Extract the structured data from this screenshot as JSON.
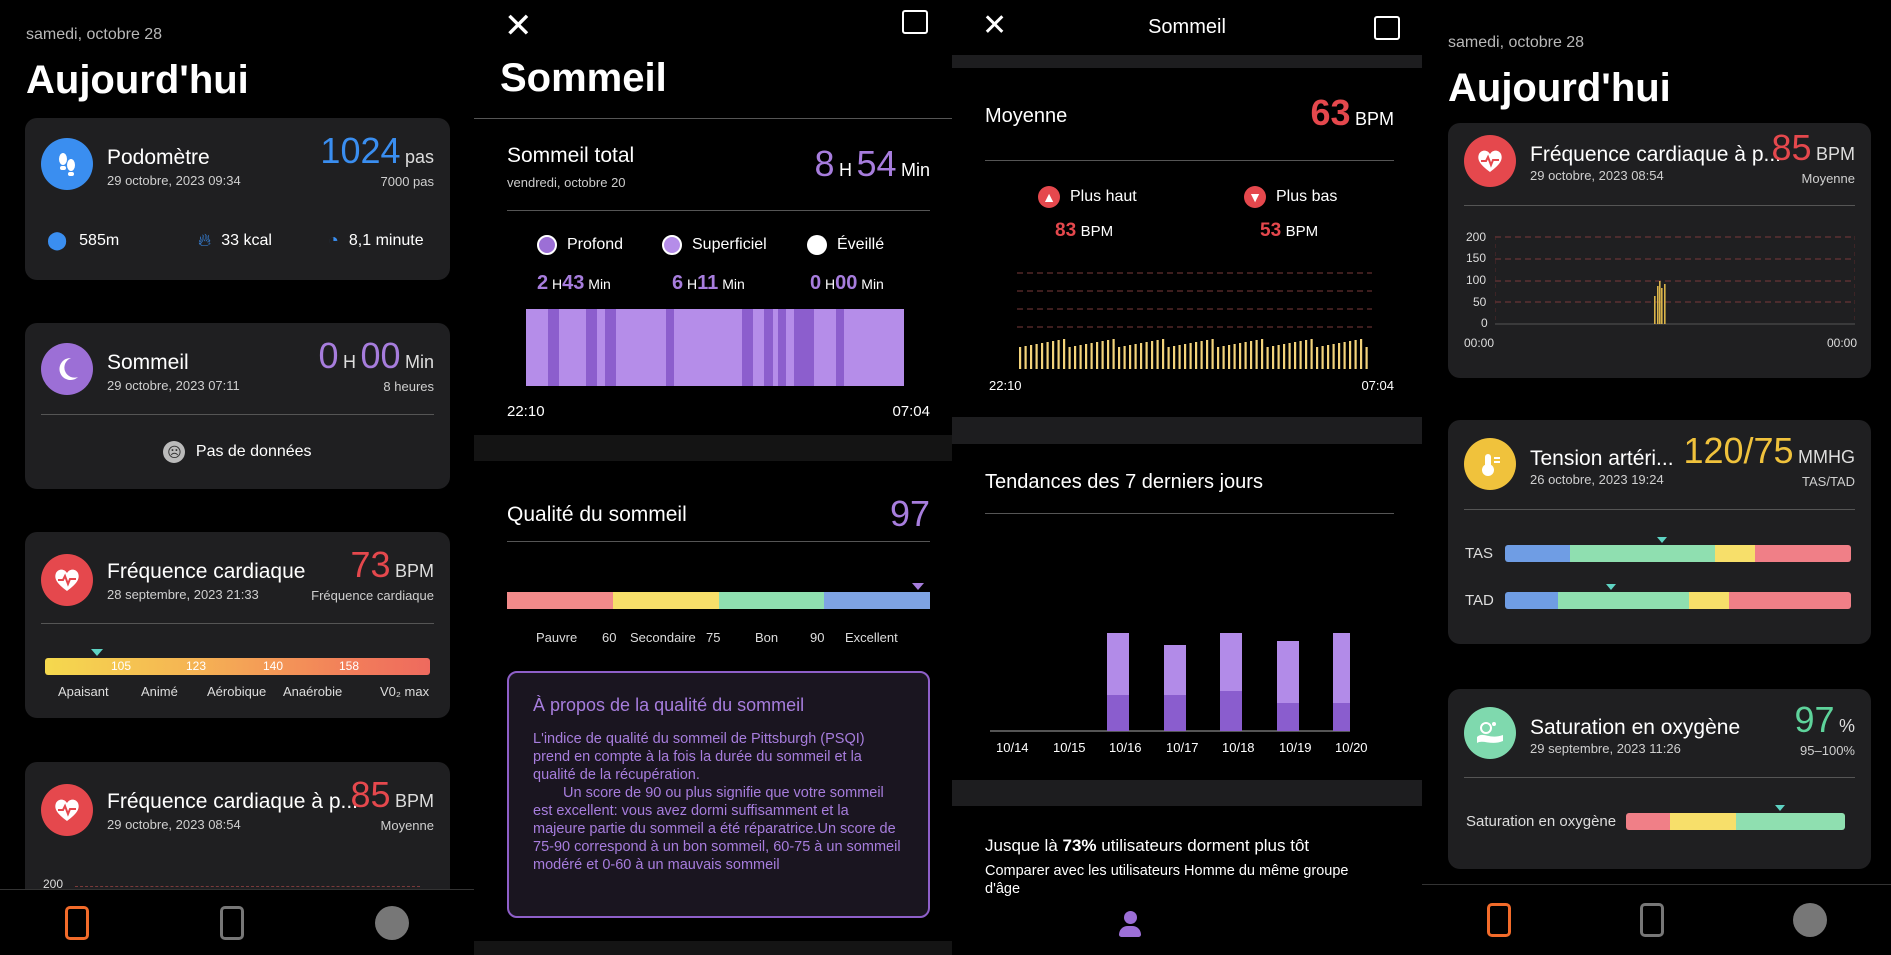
{
  "screen1": {
    "date": "samedi, octobre 28",
    "title": "Aujourd'hui",
    "pedometer": {
      "title": "Podomètre",
      "subtitle": "29 octobre, 2023 09:34",
      "value": "1024",
      "unit": "pas",
      "goal": "7000 pas",
      "distance": "585m",
      "calories": "33 kcal",
      "duration": "8,1 minute"
    },
    "sleep": {
      "title": "Sommeil",
      "subtitle": "29 octobre, 2023 07:11",
      "h": "0",
      "h_unit": "H",
      "m": "00",
      "m_unit": "Min",
      "goal": "8 heures",
      "empty": "Pas de données"
    },
    "heart": {
      "title": "Fréquence cardiaque",
      "subtitle": "28 septembre, 2023 21:33",
      "value": "73",
      "unit": "BPM",
      "label": "Fréquence cardiaque",
      "zones": [
        "105",
        "123",
        "140",
        "158"
      ],
      "zone_names": [
        "Apaisant",
        "Animé",
        "Aérobique",
        "Anaérobie",
        "V0₂ max"
      ]
    },
    "heart2": {
      "title": "Fréquence cardiaque à p...",
      "subtitle": "29 octobre, 2023 08:54",
      "value": "85",
      "unit": "BPM",
      "label": "Moyenne",
      "axis_top": "200"
    }
  },
  "screen2": {
    "title": "Sommeil",
    "total": {
      "label": "Sommeil total",
      "date": "vendredi, octobre 20",
      "h": "8",
      "h_unit": "H",
      "m": "54",
      "m_unit": "Min"
    },
    "legend": [
      {
        "name": "Profond",
        "h": "2",
        "m": "43",
        "color": "#9c6fd6"
      },
      {
        "name": "Superficiel",
        "h": "6",
        "m": "11",
        "color": "#b58de9"
      },
      {
        "name": "Éveillé",
        "h": "0",
        "m": "00",
        "color": "#ffffff"
      }
    ],
    "h_unit": "H",
    "m_unit": "Min",
    "start": "22:10",
    "end": "07:04",
    "quality": {
      "label": "Qualité du sommeil",
      "value": "97",
      "scale": [
        "Pauvre",
        "60",
        "Secondaire",
        "75",
        "Bon",
        "90",
        "Excellent"
      ]
    },
    "about": {
      "title": "À propos de la qualité du sommeil",
      "p1": "L'indice de qualité du sommeil de Pittsburgh (PSQI) prend en compte à la fois la durée du sommeil et la qualité de la récupération.",
      "p2": "Un score de 90 ou plus signifie que votre sommeil est excellent: vous avez dormi suffisamment et la majeure partie du sommeil a été réparatrice.Un score de 75-90 correspond à un bon sommeil, 60-75 à un sommeil modéré et 0-60 à un mauvais sommeil"
    }
  },
  "screen3": {
    "title": "Sommeil",
    "avg": {
      "label": "Moyenne",
      "value": "63",
      "unit": "BPM"
    },
    "high": {
      "label": "Plus haut",
      "value": "83",
      "unit": "BPM"
    },
    "low": {
      "label": "Plus bas",
      "value": "53",
      "unit": "BPM"
    },
    "hr_start": "22:10",
    "hr_end": "07:04",
    "trend_title": "Tendances des 7 derniers jours",
    "trend_dates": [
      "10/14",
      "10/15",
      "10/16",
      "10/17",
      "10/18",
      "10/19",
      "10/20"
    ],
    "compare_prefix": "Jusque là ",
    "compare_pct": "73%",
    "compare_suffix": " utilisateurs dorment plus tôt",
    "compare_sub": "Comparer avec les utilisateurs Homme du même groupe d'âge"
  },
  "screen4": {
    "date": "samedi, octobre 28",
    "title": "Aujourd'hui",
    "heart": {
      "title": "Fréquence cardiaque à p...",
      "subtitle": "29 octobre, 2023 08:54",
      "value": "85",
      "unit": "BPM",
      "label": "Moyenne",
      "axis": [
        "200",
        "150",
        "100",
        "50",
        "0"
      ],
      "x_start": "00:00",
      "x_end": "00:00"
    },
    "bp": {
      "title": "Tension artéri...",
      "subtitle": "26 octobre, 2023 19:24",
      "value": "120/75",
      "unit": "MMHG",
      "label": "TAS/TAD",
      "tas": "TAS",
      "tad": "TAD"
    },
    "oxygen": {
      "title": "Saturation en oxygène",
      "subtitle": "29 septembre, 2023 11:26",
      "value": "97",
      "unit": "%",
      "label": "95–100%",
      "bar_label": "Saturation en oxygène"
    }
  },
  "colors": {
    "blue": "#3a8ef0",
    "purple": "#a77ddd",
    "red": "#e5484d",
    "yellow": "#f0c23c",
    "green": "#5ed39b"
  }
}
